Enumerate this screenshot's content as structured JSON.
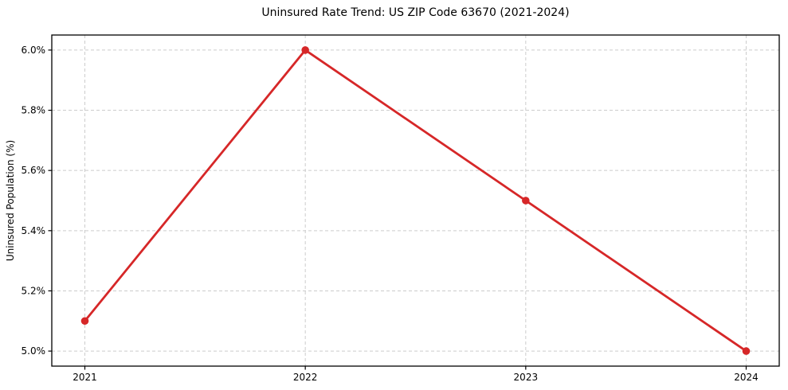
{
  "chart_data": {
    "type": "line",
    "title": "Uninsured Rate Trend: US ZIP Code 63670 (2021-2024)",
    "xlabel": "",
    "ylabel": "Uninsured Population (%)",
    "x": [
      2021,
      2022,
      2023,
      2024
    ],
    "values": [
      5.1,
      6.0,
      5.5,
      5.0
    ],
    "x_tick_labels": [
      "2021",
      "2022",
      "2023",
      "2024"
    ],
    "y_ticks": [
      5.0,
      5.2,
      5.4,
      5.6,
      5.8,
      6.0
    ],
    "y_tick_labels": [
      "5.0%",
      "5.2%",
      "5.4%",
      "5.6%",
      "5.8%",
      "6.0%"
    ],
    "xlim": [
      2020.85,
      2024.15
    ],
    "ylim": [
      4.95,
      6.05
    ],
    "grid": true,
    "grid_style": "dashed",
    "legend": null,
    "colors": {
      "line": "#d62728",
      "marker": "#d62728",
      "grid": "#cccccc",
      "axis": "#000000",
      "background": "#ffffff"
    }
  }
}
